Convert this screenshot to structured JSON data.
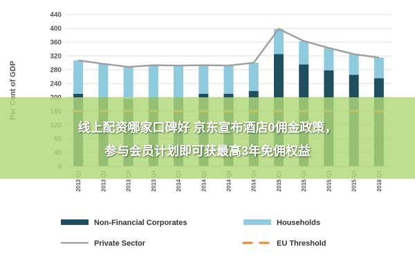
{
  "chart_data": {
    "type": "bar",
    "categories": [
      "2013 Q1",
      "2013 Q2",
      "2013 Q3",
      "2013 Q4",
      "2014 Q1",
      "2014 Q2",
      "2014 Q3",
      "2014 Q4",
      "2015 Q1",
      "2015 Q2",
      "2015 Q3",
      "2015 Q4",
      "2016 Q1"
    ],
    "stacked": true,
    "series": [
      {
        "name": "Non-Financial Corporates",
        "type": "bar",
        "color": "#1f4e5f",
        "values": [
          210,
          200,
          195,
          200,
          200,
          210,
          210,
          218,
          325,
          295,
          278,
          265,
          255
        ]
      },
      {
        "name": "Households",
        "type": "bar",
        "color": "#8fcbde",
        "values": [
          97,
          97,
          93,
          93,
          92,
          83,
          82,
          82,
          73,
          68,
          65,
          60,
          60
        ]
      },
      {
        "name": "Private Sector",
        "type": "line",
        "color": "#a0a0a0",
        "values": [
          307,
          297,
          288,
          293,
          292,
          293,
          292,
          300,
          398,
          363,
          343,
          325,
          315
        ]
      },
      {
        "name": "EU Threshold",
        "type": "line",
        "style": "dashed",
        "color": "#f07f1f",
        "values": [
          160,
          160,
          160,
          160,
          160,
          160,
          160,
          160,
          160,
          160,
          160,
          160,
          160
        ]
      }
    ],
    "ylabel": "Per Cent of GDP",
    "ylim": [
      0,
      440
    ],
    "yticks": [
      0,
      40,
      80,
      120,
      160,
      200,
      240,
      280,
      320,
      360,
      400,
      440
    ],
    "grid": true,
    "legend_position": "bottom"
  },
  "overlay": {
    "line1": "线上配资哪家口碑好 京东宣布酒店0佣金政策，",
    "line2": "参与会员计划即可获最高3年免佣权益"
  }
}
